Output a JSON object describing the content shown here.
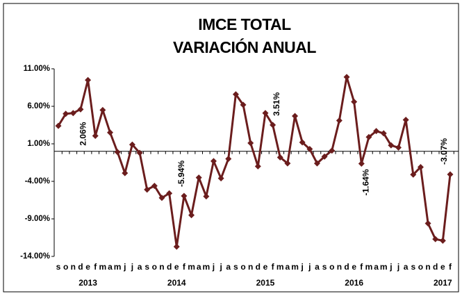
{
  "chart_data": {
    "type": "line",
    "title": "IMCE TOTAL",
    "subtitle": "VARIACIÓN ANUAL",
    "categories": [
      "s",
      "o",
      "n",
      "d",
      "e",
      "f",
      "m",
      "a",
      "m",
      "j",
      "j",
      "a",
      "s",
      "o",
      "n",
      "d",
      "e",
      "f",
      "m",
      "a",
      "m",
      "j",
      "j",
      "a",
      "s",
      "o",
      "n",
      "d",
      "e",
      "f",
      "m",
      "a",
      "m",
      "j",
      "j",
      "a",
      "s",
      "o",
      "n",
      "d",
      "e",
      "f",
      "m",
      "a",
      "m",
      "j",
      "j",
      "a",
      "s",
      "o",
      "n",
      "d",
      "e",
      "f"
    ],
    "category_years": [
      null,
      null,
      null,
      null,
      "2013",
      null,
      null,
      null,
      null,
      null,
      null,
      null,
      null,
      null,
      null,
      null,
      "2014",
      null,
      null,
      null,
      null,
      null,
      null,
      null,
      null,
      null,
      null,
      null,
      "2015",
      null,
      null,
      null,
      null,
      null,
      null,
      null,
      null,
      null,
      null,
      null,
      "2016",
      null,
      null,
      null,
      null,
      null,
      null,
      null,
      null,
      null,
      null,
      null,
      "2017",
      null
    ],
    "series": [
      {
        "name": "IMCE TOTAL",
        "color": "#6b1d1d",
        "values": [
          3.4,
          5.0,
          5.1,
          5.6,
          9.5,
          2.06,
          5.5,
          2.5,
          -0.1,
          -2.9,
          0.9,
          -0.2,
          -5.1,
          -4.6,
          -6.2,
          -5.6,
          -12.7,
          -5.94,
          -8.5,
          -3.5,
          -6.0,
          -1.3,
          -3.6,
          -1.0,
          7.6,
          6.2,
          1.1,
          -2.0,
          5.1,
          3.51,
          -0.8,
          -1.6,
          4.7,
          1.2,
          0.3,
          -1.6,
          -0.7,
          0.1,
          4.1,
          9.9,
          6.6,
          -1.64,
          1.9,
          2.7,
          2.4,
          0.8,
          0.5,
          4.2,
          -3.1,
          -2.1,
          -9.6,
          -11.7,
          -11.9,
          -3.07
        ],
        "value_labels": [
          null,
          null,
          null,
          null,
          null,
          "2.06%",
          null,
          null,
          null,
          null,
          null,
          null,
          null,
          null,
          null,
          null,
          null,
          "-5.94%",
          null,
          null,
          null,
          null,
          null,
          null,
          null,
          null,
          null,
          null,
          null,
          "3.51%",
          null,
          null,
          null,
          null,
          null,
          null,
          null,
          null,
          null,
          null,
          null,
          "-1.64%",
          null,
          null,
          null,
          null,
          null,
          null,
          null,
          null,
          null,
          null,
          null,
          "-3.07%"
        ]
      }
    ],
    "ylim": [
      -14,
      11
    ],
    "yticks": [
      {
        "value": 11,
        "label": "11.00%"
      },
      {
        "value": 6,
        "label": "6.00%"
      },
      {
        "value": 1,
        "label": "1.00%"
      },
      {
        "value": -4,
        "label": "-4.00%"
      },
      {
        "value": -9,
        "label": "-9.00%"
      },
      {
        "value": -14,
        "label": "-14.00%"
      }
    ],
    "grid": false
  }
}
